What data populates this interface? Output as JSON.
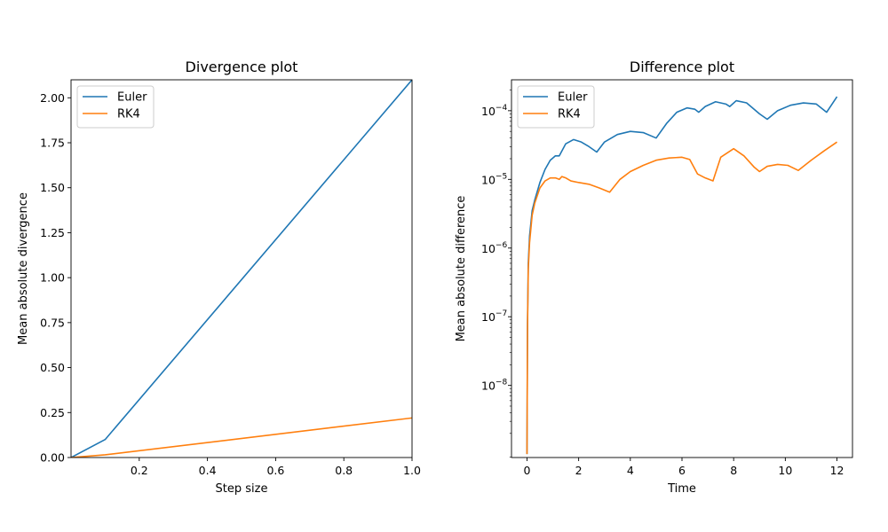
{
  "chart_data": [
    {
      "type": "line",
      "title": "Divergence plot",
      "xlabel": "Step size",
      "ylabel": "Mean absolute divergence",
      "xlim": [
        0.0,
        1.0
      ],
      "ylim": [
        0.0,
        2.1
      ],
      "xticks": [
        0.2,
        0.4,
        0.6,
        0.8,
        1.0
      ],
      "xtick_labels": [
        "0.2",
        "0.4",
        "0.6",
        "0.8",
        "1.0"
      ],
      "yticks": [
        0.0,
        0.25,
        0.5,
        0.75,
        1.0,
        1.25,
        1.5,
        1.75,
        2.0
      ],
      "ytick_labels": [
        "0.00",
        "0.25",
        "0.50",
        "0.75",
        "1.00",
        "1.25",
        "1.50",
        "1.75",
        "2.00"
      ],
      "yscale": "linear",
      "grid": false,
      "legend": "upper-left",
      "series": [
        {
          "name": "Euler",
          "color": "#1f77b4",
          "x": [
            0.0,
            0.1,
            1.0
          ],
          "y": [
            0.0,
            0.1,
            2.1
          ]
        },
        {
          "name": "RK4",
          "color": "#ff7f0e",
          "x": [
            0.0,
            0.1,
            1.0
          ],
          "y": [
            0.0,
            0.015,
            0.22
          ]
        }
      ]
    },
    {
      "type": "line",
      "title": "Difference plot",
      "xlabel": "Time",
      "ylabel": "Mean absolute difference",
      "xlim": [
        -0.6,
        12.6
      ],
      "ylim_log10": [
        -9.05,
        -3.55
      ],
      "xticks": [
        0,
        2,
        4,
        6,
        8,
        10,
        12
      ],
      "xtick_labels": [
        "0",
        "2",
        "4",
        "6",
        "8",
        "10",
        "12"
      ],
      "yticks_log10": [
        -8,
        -7,
        -6,
        -5,
        -4
      ],
      "ytick_labels": [
        "10",
        "10",
        "10",
        "10",
        "10"
      ],
      "ytick_exponents": [
        "−8",
        "−7",
        "−6",
        "−5",
        "−4"
      ],
      "yscale": "log",
      "grid": false,
      "legend": "upper-left",
      "series": [
        {
          "name": "Euler",
          "color": "#1f77b4",
          "x": [
            0.0,
            0.02,
            0.05,
            0.1,
            0.2,
            0.3,
            0.5,
            0.7,
            0.9,
            1.1,
            1.25,
            1.5,
            1.8,
            2.1,
            2.4,
            2.7,
            3.0,
            3.5,
            4.0,
            4.5,
            5.0,
            5.4,
            5.8,
            6.2,
            6.5,
            6.65,
            6.9,
            7.3,
            7.7,
            7.85,
            8.1,
            8.5,
            9.0,
            9.3,
            9.7,
            10.2,
            10.7,
            11.2,
            11.6,
            12.0
          ],
          "y": [
            1e-09,
            8e-08,
            6e-07,
            1.5e-06,
            3.5e-06,
            5e-06,
            9e-06,
            1.4e-05,
            1.9e-05,
            2.2e-05,
            2.2e-05,
            3.3e-05,
            3.8e-05,
            3.5e-05,
            3e-05,
            2.5e-05,
            3.5e-05,
            4.5e-05,
            5e-05,
            4.8e-05,
            4e-05,
            6.5e-05,
            9.5e-05,
            0.00011,
            0.000105,
            9.5e-05,
            0.000115,
            0.000135,
            0.000125,
            0.000115,
            0.00014,
            0.00013,
            9e-05,
            7.5e-05,
            0.0001,
            0.00012,
            0.00013,
            0.000125,
            9.5e-05,
            0.00016
          ]
        },
        {
          "name": "RK4",
          "color": "#ff7f0e",
          "x": [
            0.0,
            0.02,
            0.05,
            0.1,
            0.2,
            0.3,
            0.5,
            0.7,
            0.9,
            1.1,
            1.25,
            1.35,
            1.5,
            1.7,
            2.0,
            2.4,
            2.8,
            3.2,
            3.6,
            4.0,
            4.5,
            5.0,
            5.5,
            6.0,
            6.3,
            6.6,
            6.9,
            7.2,
            7.5,
            8.0,
            8.4,
            8.8,
            9.0,
            9.3,
            9.7,
            10.1,
            10.5,
            11.0,
            11.5,
            12.0
          ],
          "y": [
            1e-09,
            7e-08,
            5e-07,
            1.2e-06,
            3e-06,
            4.5e-06,
            7.5e-06,
            9.5e-06,
            1.05e-05,
            1.05e-05,
            1e-05,
            1.1e-05,
            1.05e-05,
            9.5e-06,
            9e-06,
            8.5e-06,
            7.5e-06,
            6.5e-06,
            1e-05,
            1.3e-05,
            1.6e-05,
            1.9e-05,
            2.05e-05,
            2.1e-05,
            1.95e-05,
            1.2e-05,
            1.05e-05,
            9.5e-06,
            2.1e-05,
            2.8e-05,
            2.2e-05,
            1.5e-05,
            1.3e-05,
            1.55e-05,
            1.65e-05,
            1.6e-05,
            1.35e-05,
            1.9e-05,
            2.6e-05,
            3.5e-05
          ]
        }
      ]
    }
  ]
}
